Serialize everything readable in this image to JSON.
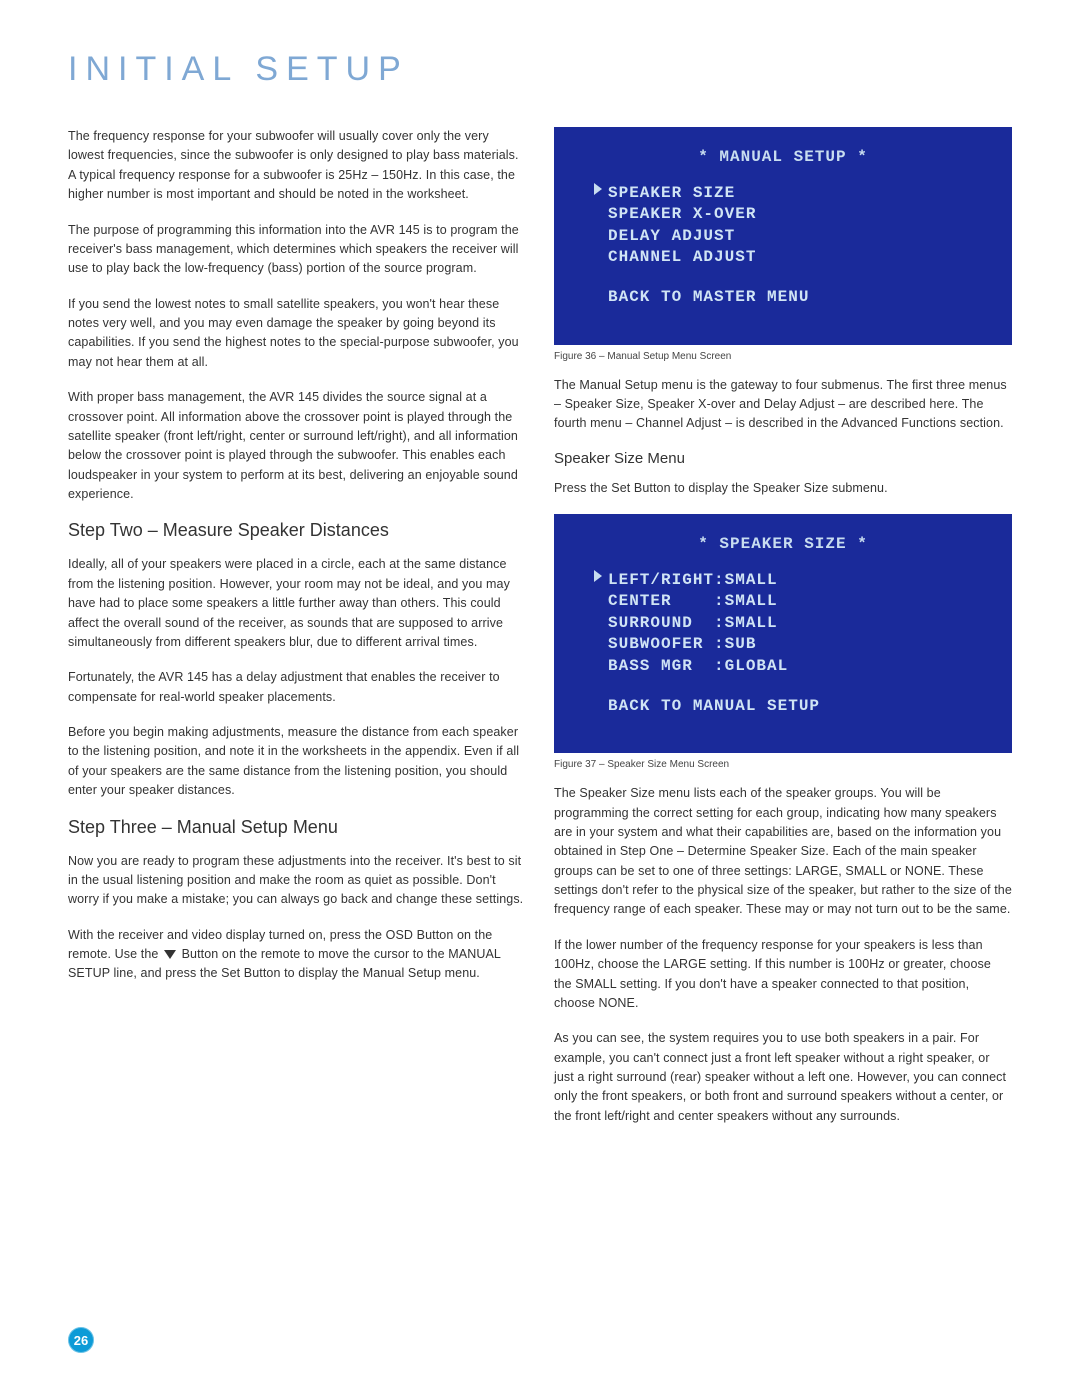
{
  "page": {
    "title": "INITIAL SETUP",
    "page_number": "26"
  },
  "colors": {
    "title_color": "#7fa8d4",
    "body_color": "#333333",
    "screen_bg": "#1a2a9a",
    "screen_text": "#d0e4f5",
    "badge_bg": "#0d9bd7"
  },
  "left_column": {
    "p1": "The frequency response for your subwoofer will usually cover only the very lowest frequencies, since the subwoofer is only designed to play bass materials. A typical frequency response for a subwoofer is 25Hz – 150Hz. In this case, the higher number is most important and should be noted in the worksheet.",
    "p2": "The purpose of programming this information into the AVR 145 is to program the receiver's bass management, which determines which speakers the receiver will use to play back the low-frequency (bass) portion of the source program.",
    "p3": "If you send the lowest notes to small satellite speakers, you won't hear these notes very well, and you may even damage the speaker by going beyond its capabilities. If you send the highest notes to the special-purpose subwoofer, you may not hear them at all.",
    "p4": "With proper bass management, the AVR 145 divides the source signal at a crossover point. All information above the crossover point is played through the satellite speaker (front left/right, center or surround left/right), and all information below the crossover point is played through the subwoofer. This enables each loudspeaker in your system to perform at its best, delivering an enjoyable sound experience.",
    "step_two_heading": "Step Two – Measure Speaker Distances",
    "p5": "Ideally, all of your speakers were placed in a circle, each at the same distance from the listening position. However, your room may not be ideal, and you may have had to place some speakers a little further away than others. This could affect the overall sound of the receiver, as sounds that are supposed to arrive simultaneously from different speakers blur, due to different arrival times.",
    "p6": "Fortunately, the AVR 145 has a delay adjustment that enables the receiver to compensate for real-world speaker placements.",
    "p7": "Before you begin making adjustments, measure the distance from each speaker to the listening position, and note it in the worksheets in the appendix. Even if all of your speakers are the same distance from the listening position, you should enter your speaker distances.",
    "step_three_heading": "Step Three – Manual Setup Menu",
    "p8": "Now you are ready to program these adjustments into the receiver. It's best to sit in the usual listening position and make the room as quiet as possible. Don't worry if you make a mistake; you can always go back and change these settings.",
    "p9a": "With the receiver and video display turned on, press the OSD Button on the remote. Use the ",
    "p9b": " Button on the remote to move the cursor to the MANUAL SETUP line, and press the Set Button to display the Manual Setup menu."
  },
  "right_column": {
    "screen1": {
      "title": "* MANUAL SETUP *",
      "items": [
        "SPEAKER SIZE",
        "SPEAKER X-OVER",
        "DELAY ADJUST",
        "CHANNEL ADJUST"
      ],
      "back": "BACK TO MASTER MENU",
      "caption": "Figure 36 – Manual Setup Menu Screen"
    },
    "p1": "The Manual Setup menu is the gateway to four submenus. The first three menus – Speaker Size, Speaker X-over and Delay Adjust – are described here. The fourth menu – Channel Adjust – is described in the Advanced Functions section.",
    "speaker_size_heading": "Speaker Size Menu",
    "p2": "Press the Set Button to display the Speaker Size submenu.",
    "screen2": {
      "title": "* SPEAKER SIZE *",
      "rows": [
        {
          "label": "LEFT/RIGHT",
          "value": "SMALL"
        },
        {
          "label": "CENTER",
          "value": "SMALL"
        },
        {
          "label": "SURROUND",
          "value": "SMALL"
        },
        {
          "label": "SUBWOOFER",
          "value": "SUB"
        },
        {
          "label": "BASS MGR",
          "value": "GLOBAL"
        }
      ],
      "back": "BACK TO MANUAL SETUP",
      "caption": "Figure 37 – Speaker Size Menu Screen"
    },
    "p3": "The Speaker Size menu lists each of the speaker groups. You will be programming the correct setting for each group, indicating how many speakers are in your system and what their capabilities are, based on the information you obtained in Step One – Determine Speaker Size. Each of the main speaker groups can be set to one of three settings: LARGE, SMALL or NONE. These settings don't refer to the physical size of the speaker, but rather to the size of the frequency range of each speaker. These may or may not turn out to be the same.",
    "p4": "If the lower number of the frequency response for your speakers is less than 100Hz, choose the LARGE setting. If this number is 100Hz or greater, choose the SMALL setting. If you don't have a speaker connected to that position, choose NONE.",
    "p5": "As you can see, the system requires you to use both speakers in a pair. For example, you can't connect just a front left speaker without a right speaker, or just a right surround (rear) speaker without a left one. However, you can connect only the front speakers, or both front and surround speakers without a center, or the front left/right and center speakers without any surrounds."
  }
}
